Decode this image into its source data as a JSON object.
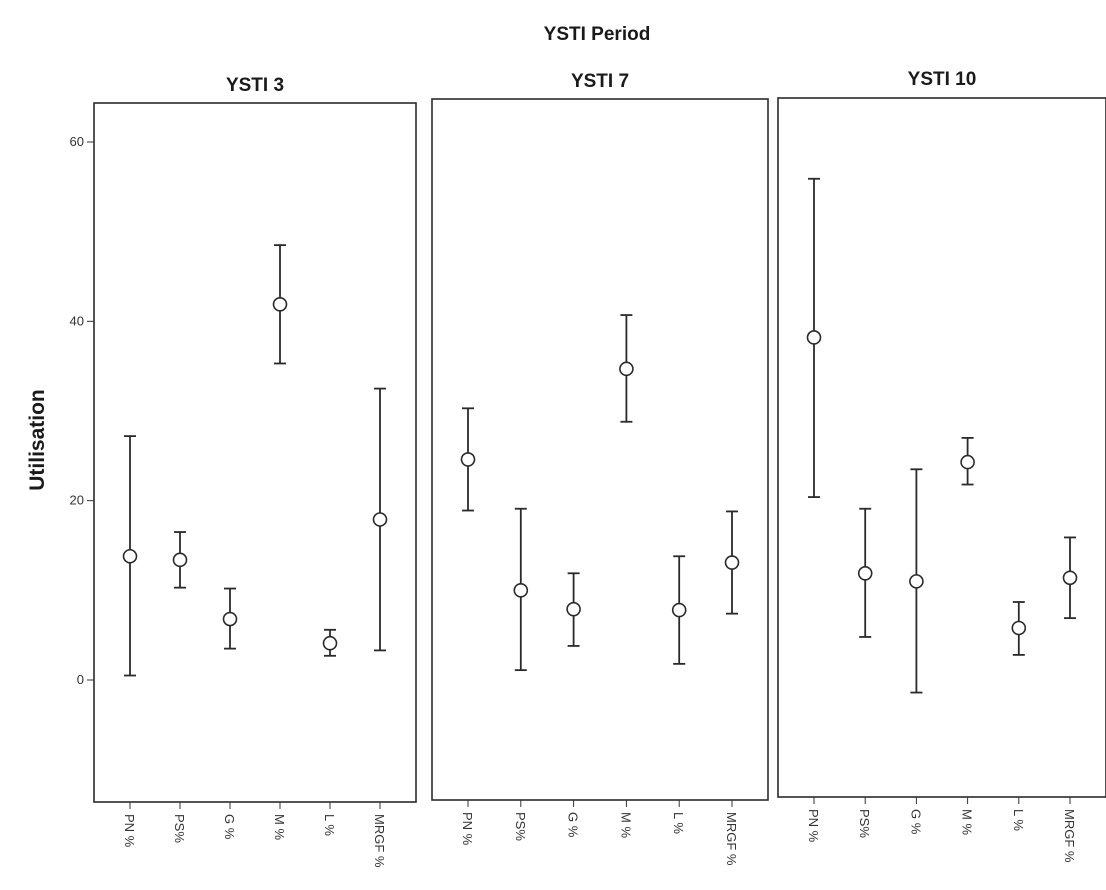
{
  "chart_data": {
    "type": "errorbar",
    "title": "YSTI Period",
    "ylabel": "Utilisation",
    "ylim": [
      -13,
      63
    ],
    "yticks": [
      0,
      20,
      40,
      60
    ],
    "categories": [
      "PN %",
      "PS%",
      "G %",
      "M %",
      "L %",
      "MRGF %"
    ],
    "panels": [
      {
        "name": "YSTI 3",
        "points": [
          {
            "category": "PN %",
            "mean": 13.8,
            "low": 0.5,
            "high": 27.2
          },
          {
            "category": "PS%",
            "mean": 13.4,
            "low": 10.3,
            "high": 16.5
          },
          {
            "category": "G %",
            "mean": 6.8,
            "low": 3.5,
            "high": 10.2
          },
          {
            "category": "M %",
            "mean": 41.9,
            "low": 35.3,
            "high": 48.5
          },
          {
            "category": "L %",
            "mean": 4.1,
            "low": 2.7,
            "high": 5.6
          },
          {
            "category": "MRGF %",
            "mean": 17.9,
            "low": 3.3,
            "high": 32.5
          }
        ]
      },
      {
        "name": "YSTI 7",
        "points": [
          {
            "category": "PN %",
            "mean": 24.6,
            "low": 18.9,
            "high": 30.3
          },
          {
            "category": "PS%",
            "mean": 10.0,
            "low": 1.1,
            "high": 19.1
          },
          {
            "category": "G %",
            "mean": 7.9,
            "low": 3.8,
            "high": 11.9
          },
          {
            "category": "M %",
            "mean": 34.7,
            "low": 28.8,
            "high": 40.7
          },
          {
            "category": "L %",
            "mean": 7.8,
            "low": 1.8,
            "high": 13.8
          },
          {
            "category": "MRGF %",
            "mean": 13.1,
            "low": 7.4,
            "high": 18.8
          }
        ]
      },
      {
        "name": "YSTI 10",
        "points": [
          {
            "category": "PN %",
            "mean": 38.2,
            "low": 20.4,
            "high": 55.9
          },
          {
            "category": "PS%",
            "mean": 11.9,
            "low": 4.8,
            "high": 19.1
          },
          {
            "category": "G %",
            "mean": 11.0,
            "low": -1.4,
            "high": 23.5
          },
          {
            "category": "M %",
            "mean": 24.3,
            "low": 21.8,
            "high": 27.0
          },
          {
            "category": "L %",
            "mean": 5.8,
            "low": 2.8,
            "high": 8.7
          },
          {
            "category": "MRGF %",
            "mean": 11.4,
            "low": 6.9,
            "high": 15.9
          }
        ]
      }
    ]
  }
}
